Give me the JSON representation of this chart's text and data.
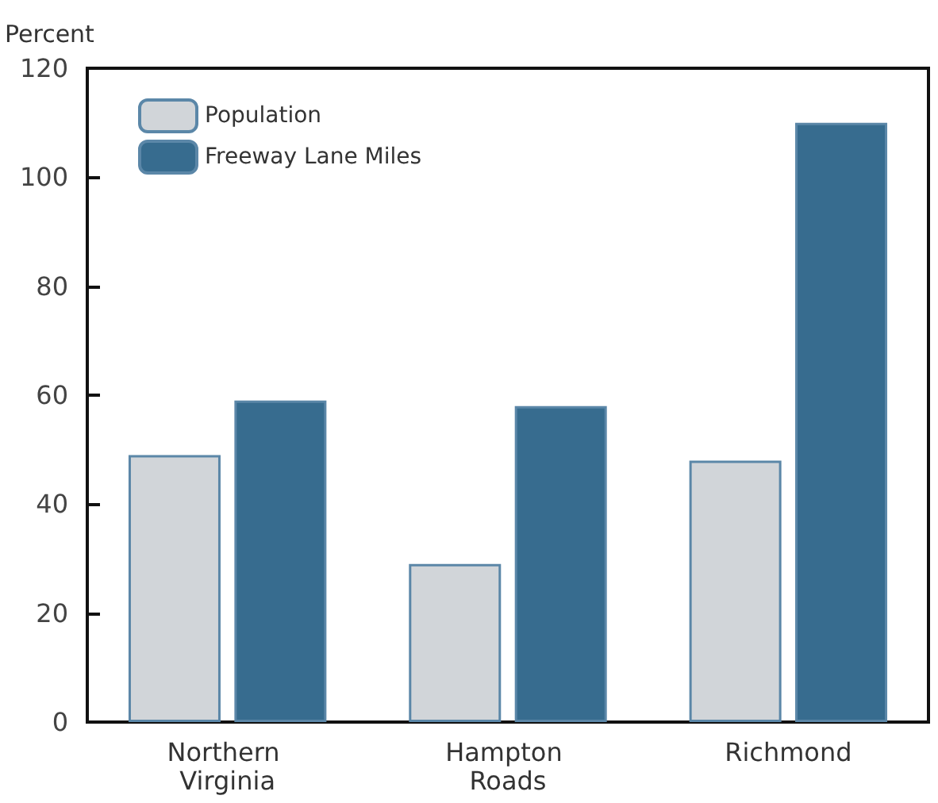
{
  "chart_data": {
    "type": "bar",
    "ylabel": "Percent",
    "categories": [
      "Northern Virginia",
      "Hampton Roads",
      "Richmond"
    ],
    "series": [
      {
        "name": "Population",
        "color": "#d1d5d9",
        "values": [
          49,
          29,
          48
        ]
      },
      {
        "name": "Freeway Lane Miles",
        "color": "#376c8f",
        "values": [
          59,
          58,
          110
        ]
      }
    ],
    "ylim": [
      0,
      120
    ],
    "yticks": [
      0,
      20,
      40,
      60,
      80,
      100,
      120
    ],
    "grid": false,
    "legend": "top left"
  }
}
